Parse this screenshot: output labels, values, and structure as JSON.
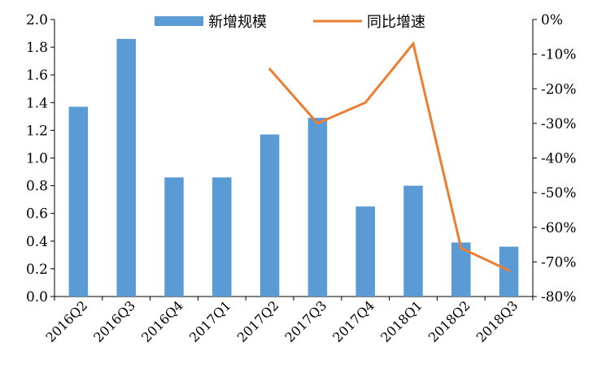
{
  "chart_data": {
    "type": "bar+line",
    "categories": [
      "2016Q2",
      "2016Q3",
      "2016Q4",
      "2017Q1",
      "2017Q2",
      "2017Q3",
      "2017Q4",
      "2018Q1",
      "2018Q2",
      "2018Q3"
    ],
    "series": [
      {
        "name": "新增规模",
        "type": "bar",
        "axis": "left",
        "color": "#5B9BD5",
        "values": [
          1.37,
          1.86,
          0.86,
          0.86,
          1.17,
          1.29,
          0.65,
          0.8,
          0.39,
          0.36
        ]
      },
      {
        "name": "同比增速",
        "type": "line",
        "axis": "right",
        "color": "#ED7D31",
        "values": [
          null,
          null,
          null,
          null,
          -14.3,
          -30.0,
          -24.0,
          -7.0,
          -66.0,
          -72.5
        ]
      }
    ],
    "left_axis": {
      "ylim": [
        0,
        2.0
      ],
      "ticks": [
        "0.0",
        "0.2",
        "0.4",
        "0.6",
        "0.8",
        "1.0",
        "1.2",
        "1.4",
        "1.6",
        "1.8",
        "2.0"
      ]
    },
    "right_axis": {
      "ylim": [
        -80,
        0
      ],
      "ticks": [
        "-80%",
        "-70%",
        "-60%",
        "-50%",
        "-40%",
        "-30%",
        "-20%",
        "-10%",
        "0%"
      ]
    },
    "legend_position": "top",
    "grid": false
  }
}
